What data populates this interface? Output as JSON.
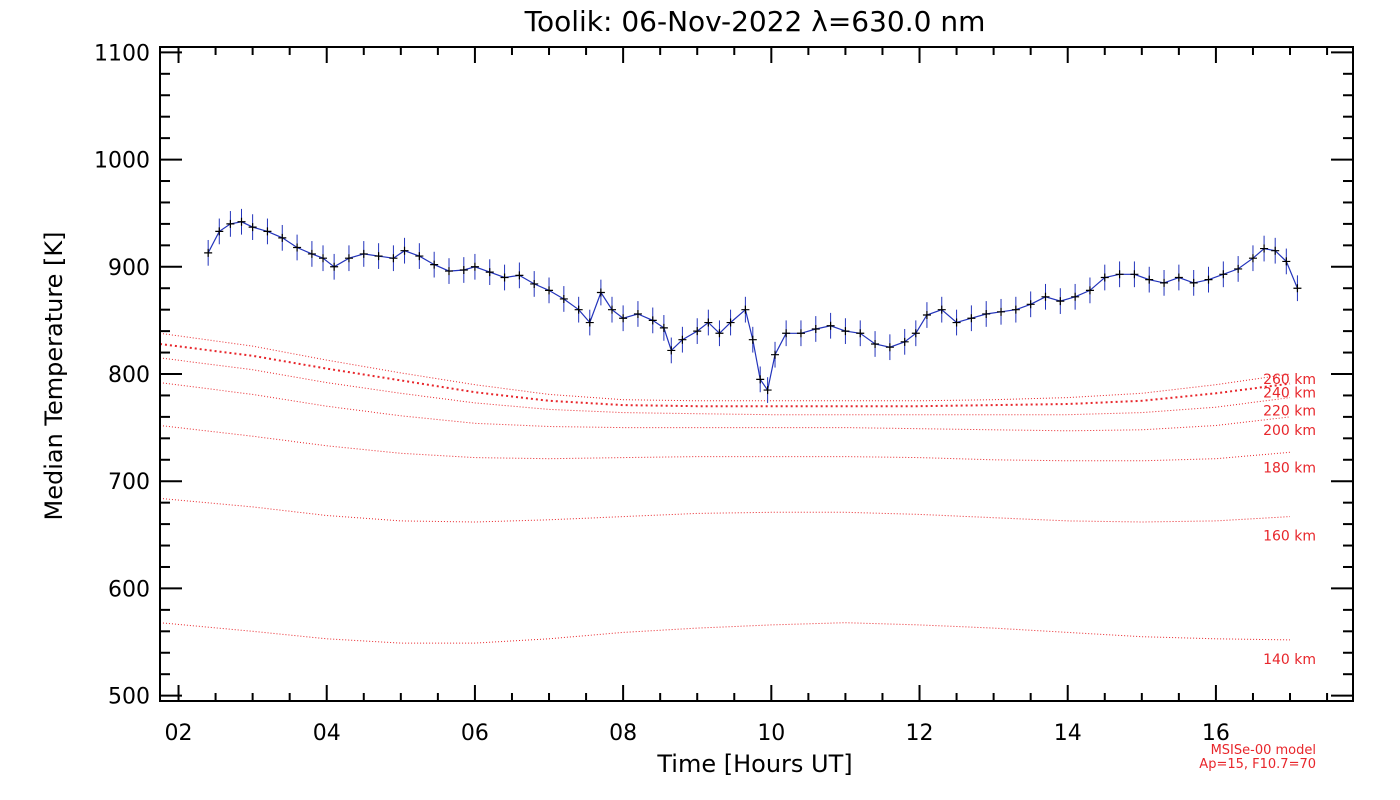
{
  "chart_data": {
    "type": "line",
    "title": "Toolik: 06-Nov-2022 λ=630.0 nm",
    "xlabel": "Time [Hours UT]",
    "ylabel": "Median Temperature [K]",
    "xlim": [
      1.75,
      17.85
    ],
    "ylim": [
      495,
      1105
    ],
    "x_ticks": [
      2,
      4,
      6,
      8,
      10,
      12,
      14,
      16
    ],
    "x_tick_labels": [
      "02",
      "04",
      "06",
      "08",
      "10",
      "12",
      "14",
      "16"
    ],
    "y_ticks": [
      500,
      600,
      700,
      800,
      900,
      1000,
      1100
    ],
    "y_tick_labels": [
      "500",
      "600",
      "700",
      "800",
      "900",
      "1000",
      "1100"
    ],
    "grid": false,
    "colors": {
      "observed_line": "#2233bb",
      "observed_marker": "#000000",
      "model": "#e8262b",
      "axes": "#000000"
    },
    "observed": {
      "name": "",
      "x": [
        2.4,
        2.55,
        2.7,
        2.85,
        3.0,
        3.2,
        3.4,
        3.6,
        3.8,
        3.95,
        4.1,
        4.3,
        4.5,
        4.7,
        4.9,
        5.05,
        5.25,
        5.45,
        5.65,
        5.85,
        6.0,
        6.2,
        6.4,
        6.6,
        6.8,
        7.0,
        7.2,
        7.4,
        7.55,
        7.7,
        7.85,
        8.0,
        8.2,
        8.4,
        8.55,
        8.65,
        8.8,
        9.0,
        9.15,
        9.3,
        9.45,
        9.65,
        9.75,
        9.85,
        9.95,
        10.05,
        10.2,
        10.4,
        10.6,
        10.8,
        11.0,
        11.2,
        11.4,
        11.6,
        11.8,
        11.95,
        12.1,
        12.3,
        12.5,
        12.7,
        12.9,
        13.1,
        13.3,
        13.5,
        13.7,
        13.9,
        14.1,
        14.3,
        14.5,
        14.7,
        14.9,
        15.1,
        15.3,
        15.5,
        15.7,
        15.9,
        16.1,
        16.3,
        16.5,
        16.65,
        16.8,
        16.95,
        17.1
      ],
      "y": [
        913,
        933,
        940,
        942,
        937,
        933,
        927,
        918,
        912,
        908,
        900,
        908,
        912,
        910,
        908,
        915,
        910,
        902,
        896,
        897,
        900,
        895,
        890,
        892,
        884,
        878,
        870,
        860,
        848,
        876,
        860,
        852,
        856,
        850,
        843,
        822,
        832,
        840,
        848,
        838,
        848,
        860,
        832,
        795,
        785,
        818,
        838,
        838,
        842,
        845,
        840,
        838,
        828,
        825,
        830,
        838,
        855,
        860,
        848,
        852,
        856,
        858,
        860,
        865,
        872,
        868,
        872,
        878,
        890,
        893,
        893,
        888,
        885,
        890,
        885,
        888,
        893,
        898,
        908,
        917,
        915,
        905,
        880
      ],
      "error": 12
    },
    "model": {
      "name": "MSISe-00 model",
      "params": "Ap=15, F10.7=70",
      "x": [
        1.75,
        3.0,
        4.0,
        5.0,
        6.0,
        7.0,
        8.0,
        9.0,
        10.0,
        11.0,
        12.0,
        13.0,
        14.0,
        15.0,
        16.0,
        17.0
      ],
      "series": [
        {
          "name": "140 km",
          "values": [
            568,
            560,
            553,
            549,
            549,
            553,
            559,
            563,
            566,
            568,
            566,
            563,
            559,
            555,
            553,
            552
          ]
        },
        {
          "name": "160 km",
          "values": [
            684,
            676,
            668,
            663,
            662,
            664,
            667,
            670,
            671,
            671,
            669,
            666,
            663,
            662,
            663,
            667
          ]
        },
        {
          "name": "180 km",
          "values": [
            752,
            742,
            733,
            726,
            722,
            721,
            722,
            723,
            723,
            723,
            722,
            720,
            719,
            719,
            721,
            727
          ]
        },
        {
          "name": "200 km",
          "values": [
            792,
            781,
            770,
            761,
            754,
            751,
            750,
            750,
            750,
            750,
            749,
            748,
            747,
            748,
            752,
            760
          ]
        },
        {
          "name": "220 km",
          "values": [
            815,
            804,
            792,
            782,
            773,
            767,
            764,
            763,
            762,
            762,
            762,
            762,
            762,
            764,
            769,
            778
          ]
        },
        {
          "name": "240 km",
          "values": [
            828,
            817,
            805,
            794,
            783,
            775,
            771,
            770,
            770,
            770,
            770,
            771,
            772,
            775,
            782,
            791
          ]
        },
        {
          "name": "260 km",
          "values": [
            838,
            826,
            813,
            801,
            790,
            781,
            776,
            775,
            775,
            775,
            775,
            776,
            778,
            782,
            790,
            800
          ]
        }
      ]
    }
  }
}
